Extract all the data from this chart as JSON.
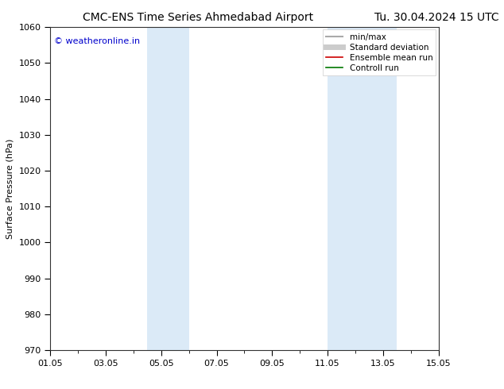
{
  "title_left": "CMC-ENS Time Series Ahmedabad Airport",
  "title_right": "Tu. 30.04.2024 15 UTC",
  "ylabel": "Surface Pressure (hPa)",
  "ylim": [
    970,
    1060
  ],
  "yticks": [
    970,
    980,
    990,
    1000,
    1010,
    1020,
    1030,
    1040,
    1050,
    1060
  ],
  "xlim": [
    0,
    14
  ],
  "xtick_labels": [
    "01.05",
    "03.05",
    "05.05",
    "07.05",
    "09.05",
    "11.05",
    "13.05",
    "15.05"
  ],
  "xtick_positions": [
    0,
    2,
    4,
    6,
    8,
    10,
    12,
    14
  ],
  "shaded_bands": [
    {
      "xmin": 3.5,
      "xmax": 5.0
    },
    {
      "xmin": 10.0,
      "xmax": 12.5
    }
  ],
  "shade_color": "#dbeaf7",
  "background_color": "#ffffff",
  "watermark_text": "© weatheronline.in",
  "watermark_color": "#0000cc",
  "watermark_fontsize": 8,
  "legend_items": [
    {
      "label": "min/max",
      "color": "#aaaaaa",
      "lw": 1.5
    },
    {
      "label": "Standard deviation",
      "color": "#cccccc",
      "lw": 5
    },
    {
      "label": "Ensemble mean run",
      "color": "#cc0000",
      "lw": 1.2
    },
    {
      "label": "Controll run",
      "color": "#007700",
      "lw": 1.2
    }
  ],
  "title_fontsize": 10,
  "axis_label_fontsize": 8,
  "tick_fontsize": 8,
  "legend_fontsize": 7.5
}
